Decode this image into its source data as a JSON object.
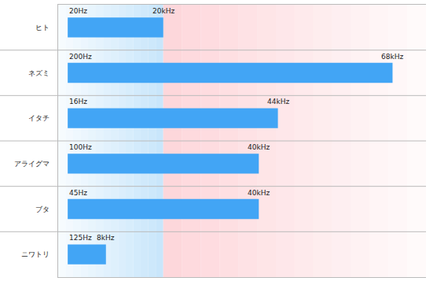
{
  "chart_data": {
    "type": "bar",
    "orientation": "horizontal",
    "categories": [
      "ヒト",
      "ネズミ",
      "イタチ",
      "アライグマ",
      "ブタ",
      "ニワトリ"
    ],
    "values": [
      20000,
      68000,
      44000,
      40000,
      40000,
      8000
    ],
    "value_labels": [
      "20kHz",
      "68kHz",
      "44kHz",
      "40kHz",
      "40kHz",
      "8kHz"
    ],
    "min_values": [
      20,
      200,
      16,
      100,
      45,
      125
    ],
    "min_labels": [
      "20Hz",
      "200Hz",
      "16Hz",
      "100Hz",
      "45Hz",
      "125Hz"
    ],
    "color": "#42a5f5",
    "xlim": [
      -2000,
      75000
    ],
    "xticks": [],
    "tick_labels": "y",
    "grid": true,
    "data_labels": true
  }
}
